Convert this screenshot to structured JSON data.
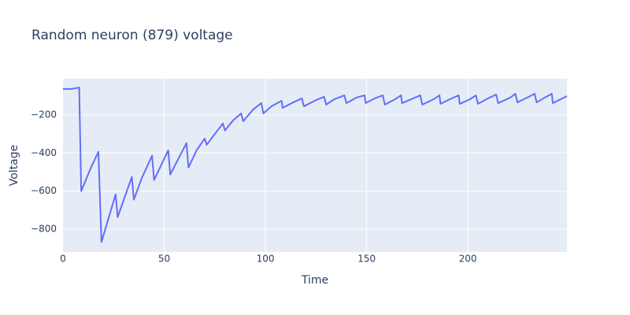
{
  "chart_data": {
    "type": "line",
    "title": "Random neuron (879) voltage",
    "x_label": "Time",
    "y_label": "Voltage",
    "x": [
      0,
      4,
      8,
      9,
      14,
      17.5,
      19,
      26,
      27,
      34,
      35,
      39,
      44,
      45,
      52,
      53,
      61,
      62,
      66,
      70,
      71,
      75,
      79,
      80,
      84,
      88,
      89,
      94,
      98,
      99,
      103,
      108,
      108.5,
      113,
      118,
      119,
      125,
      129,
      130,
      134,
      139,
      140,
      145,
      149,
      149.5,
      154,
      158,
      159,
      164,
      167,
      167.5,
      173,
      176.5,
      177.5,
      183,
      186,
      186.5,
      191,
      195.5,
      196,
      201,
      204,
      205,
      210,
      214,
      215,
      221,
      223.5,
      224.5,
      230,
      233,
      234,
      238,
      241.5,
      242,
      249
    ],
    "series": [
      {
        "name": "voltage",
        "color": "#636efa",
        "values": [
          -64,
          -64,
          -56,
          -600,
          -472,
          -394,
          -868,
          -617,
          -737,
          -526,
          -645,
          -530,
          -414,
          -542,
          -386,
          -513,
          -348,
          -476,
          -386,
          -324,
          -357,
          -300,
          -245,
          -282,
          -229,
          -192,
          -233,
          -171,
          -138,
          -192,
          -155,
          -126,
          -163,
          -138,
          -113,
          -155,
          -122,
          -105,
          -146,
          -118,
          -97,
          -138,
          -109,
          -97,
          -138,
          -113,
          -97,
          -146,
          -118,
          -97,
          -138,
          -113,
          -97,
          -146,
          -118,
          -97,
          -142,
          -118,
          -97,
          -142,
          -118,
          -97,
          -142,
          -113,
          -93,
          -138,
          -109,
          -89,
          -134,
          -105,
          -89,
          -134,
          -109,
          -89,
          -138,
          -101
        ]
      }
    ],
    "xlim": [
      0,
      249
    ],
    "ylim": [
      -920,
      -10
    ],
    "xticks": [
      0,
      50,
      100,
      150,
      200
    ],
    "yticks": [
      {
        "value": -200,
        "label": "−200"
      },
      {
        "value": -400,
        "label": "−400"
      },
      {
        "value": -600,
        "label": "−600"
      },
      {
        "value": -800,
        "label": "−800"
      }
    ],
    "grid": true
  }
}
